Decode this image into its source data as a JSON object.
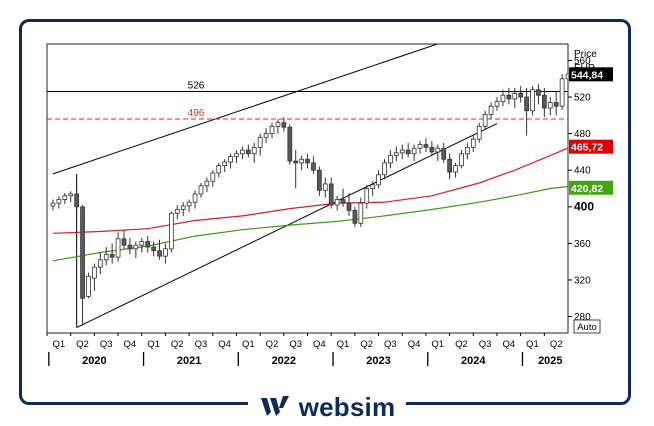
{
  "brand": {
    "name": "websim",
    "logo": "websim-logo-icon"
  },
  "chart_data": {
    "type": "candlestick",
    "y_axis": {
      "title": "Price",
      "unit": "EUR",
      "range": [
        262,
        578
      ],
      "ticks": [
        280,
        320,
        360,
        400,
        440,
        480,
        520,
        560
      ],
      "position": "right"
    },
    "x_axis": {
      "quarters": [
        "Q1",
        "Q2",
        "Q3",
        "Q4",
        "Q1",
        "Q2",
        "Q3",
        "Q4",
        "Q1",
        "Q2",
        "Q3",
        "Q4",
        "Q1",
        "Q2",
        "Q3",
        "Q4",
        "Q1",
        "Q2",
        "Q3",
        "Q4",
        "Q1",
        "Q2"
      ],
      "years": [
        "2020",
        "2021",
        "2022",
        "2023",
        "2024",
        "2025"
      ]
    },
    "auto_button_label": "Auto",
    "horizontal_levels": [
      {
        "label": "526",
        "value": 526,
        "style": "solid",
        "color": "#000000"
      },
      {
        "label": "496",
        "value": 496,
        "style": "dashed",
        "color": "#e8262a"
      }
    ],
    "badges": [
      {
        "label": "544,84",
        "value": 544.84,
        "color": "#000000"
      },
      {
        "label": "465,72",
        "value": 465.72,
        "color": "#e00000"
      },
      {
        "label": "420,82",
        "value": 420.82,
        "color": "#44a317"
      }
    ],
    "channel": {
      "upper": [
        {
          "x": 0,
          "y": 436
        },
        {
          "x": 75,
          "y": 600
        }
      ],
      "lower": [
        {
          "x": 4,
          "y": 268
        },
        {
          "x": 75,
          "y": 491
        }
      ],
      "left_vertical": {
        "x": 4,
        "y": [
          268,
          436
        ]
      }
    },
    "moving_averages": [
      {
        "color": "#d42020",
        "points": [
          [
            0,
            371
          ],
          [
            8,
            373
          ],
          [
            16,
            376
          ],
          [
            24,
            385
          ],
          [
            32,
            390
          ],
          [
            40,
            398
          ],
          [
            48,
            404
          ],
          [
            56,
            405
          ],
          [
            64,
            412
          ],
          [
            72,
            426
          ],
          [
            78,
            440
          ],
          [
            84,
            456
          ],
          [
            88,
            467
          ]
        ]
      },
      {
        "color": "#3d9a14",
        "points": [
          [
            0,
            341
          ],
          [
            8,
            350
          ],
          [
            16,
            357
          ],
          [
            24,
            368
          ],
          [
            32,
            375
          ],
          [
            40,
            380
          ],
          [
            48,
            384
          ],
          [
            56,
            390
          ],
          [
            64,
            397
          ],
          [
            72,
            405
          ],
          [
            78,
            412
          ],
          [
            84,
            420
          ],
          [
            88,
            423
          ]
        ]
      }
    ],
    "candles": [
      [
        401,
        408,
        396,
        404
      ],
      [
        404,
        412,
        398,
        408
      ],
      [
        408,
        415,
        403,
        412
      ],
      [
        412,
        417,
        405,
        414
      ],
      [
        414,
        418,
        396,
        400
      ],
      [
        400,
        402,
        270,
        300
      ],
      [
        302,
        328,
        300,
        324
      ],
      [
        322,
        338,
        308,
        334
      ],
      [
        334,
        350,
        326,
        342
      ],
      [
        342,
        356,
        336,
        348
      ],
      [
        348,
        360,
        338,
        345
      ],
      [
        345,
        372,
        340,
        365
      ],
      [
        365,
        375,
        354,
        358
      ],
      [
        358,
        366,
        348,
        354
      ],
      [
        354,
        362,
        344,
        358
      ],
      [
        358,
        366,
        350,
        362
      ],
      [
        362,
        368,
        350,
        356
      ],
      [
        356,
        362,
        346,
        352
      ],
      [
        352,
        364,
        342,
        346
      ],
      [
        346,
        360,
        338,
        354
      ],
      [
        354,
        395,
        350,
        393
      ],
      [
        393,
        402,
        386,
        397
      ],
      [
        397,
        405,
        390,
        401
      ],
      [
        401,
        408,
        394,
        405
      ],
      [
        405,
        418,
        398,
        414
      ],
      [
        414,
        426,
        410,
        423
      ],
      [
        423,
        432,
        416,
        428
      ],
      [
        428,
        440,
        422,
        437
      ],
      [
        437,
        448,
        432,
        445
      ],
      [
        445,
        452,
        438,
        449
      ],
      [
        449,
        458,
        442,
        455
      ],
      [
        455,
        462,
        448,
        458
      ],
      [
        458,
        466,
        452,
        462
      ],
      [
        462,
        468,
        454,
        458
      ],
      [
        458,
        470,
        448,
        465
      ],
      [
        465,
        480,
        456,
        476
      ],
      [
        476,
        486,
        470,
        480
      ],
      [
        480,
        492,
        475,
        488
      ],
      [
        488,
        496,
        480,
        492
      ],
      [
        492,
        498,
        482,
        487
      ],
      [
        487,
        490,
        446,
        450
      ],
      [
        450,
        462,
        420,
        448
      ],
      [
        448,
        456,
        440,
        452
      ],
      [
        452,
        458,
        442,
        448
      ],
      [
        448,
        455,
        436,
        440
      ],
      [
        440,
        444,
        412,
        418
      ],
      [
        418,
        432,
        410,
        425
      ],
      [
        425,
        432,
        398,
        402
      ],
      [
        402,
        412,
        396,
        408
      ],
      [
        408,
        420,
        400,
        404
      ],
      [
        404,
        415,
        390,
        396
      ],
      [
        396,
        400,
        378,
        382
      ],
      [
        382,
        410,
        378,
        404
      ],
      [
        404,
        424,
        398,
        420
      ],
      [
        420,
        428,
        412,
        424
      ],
      [
        424,
        440,
        420,
        435
      ],
      [
        435,
        452,
        430,
        448
      ],
      [
        448,
        462,
        442,
        456
      ],
      [
        456,
        466,
        450,
        459
      ],
      [
        459,
        468,
        452,
        462
      ],
      [
        462,
        470,
        454,
        458
      ],
      [
        458,
        468,
        450,
        464
      ],
      [
        464,
        472,
        458,
        468
      ],
      [
        468,
        475,
        460,
        465
      ],
      [
        465,
        472,
        456,
        460
      ],
      [
        460,
        468,
        450,
        464
      ],
      [
        464,
        470,
        448,
        452
      ],
      [
        452,
        458,
        430,
        438
      ],
      [
        438,
        448,
        432,
        445
      ],
      [
        445,
        462,
        442,
        458
      ],
      [
        458,
        470,
        452,
        465
      ],
      [
        465,
        478,
        460,
        474
      ],
      [
        474,
        492,
        470,
        488
      ],
      [
        488,
        505,
        484,
        501
      ],
      [
        501,
        514,
        496,
        510
      ],
      [
        510,
        520,
        505,
        515
      ],
      [
        515,
        528,
        510,
        522
      ],
      [
        522,
        530,
        512,
        518
      ],
      [
        518,
        530,
        508,
        524
      ],
      [
        524,
        532,
        514,
        520
      ],
      [
        520,
        530,
        478,
        505
      ],
      [
        505,
        532,
        500,
        528
      ],
      [
        528,
        534,
        512,
        522
      ],
      [
        522,
        530,
        498,
        508
      ],
      [
        508,
        520,
        500,
        514
      ],
      [
        514,
        526,
        500,
        510
      ],
      [
        510,
        545,
        506,
        540
      ],
      [
        540,
        552,
        536,
        545
      ]
    ]
  }
}
